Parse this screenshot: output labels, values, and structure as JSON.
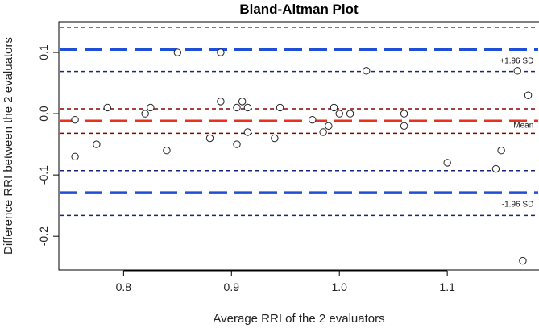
{
  "chart_data": {
    "type": "scatter",
    "title": "Bland-Altman Plot",
    "xlabel": "Average RRI of the 2 evaluators",
    "ylabel": "Difference RRI between the 2 evaluators",
    "xlim": [
      0.74,
      1.185
    ],
    "ylim": [
      -0.255,
      0.15
    ],
    "xticks": [
      0.8,
      0.9,
      1.0,
      1.1
    ],
    "xtick_labels": [
      "0.8",
      "0.9",
      "1.0",
      "1.1"
    ],
    "yticks": [
      -0.2,
      -0.1,
      0.0,
      0.1
    ],
    "ytick_labels": [
      "-0.2",
      "-0.1",
      "0.0",
      "0.1"
    ],
    "grid": false,
    "points": [
      {
        "x": 0.755,
        "y": -0.01
      },
      {
        "x": 0.755,
        "y": -0.07
      },
      {
        "x": 0.775,
        "y": -0.05
      },
      {
        "x": 0.785,
        "y": 0.01
      },
      {
        "x": 0.82,
        "y": 0.0
      },
      {
        "x": 0.825,
        "y": 0.01
      },
      {
        "x": 0.84,
        "y": -0.06
      },
      {
        "x": 0.85,
        "y": 0.1
      },
      {
        "x": 0.88,
        "y": -0.04
      },
      {
        "x": 0.89,
        "y": 0.1
      },
      {
        "x": 0.89,
        "y": 0.02
      },
      {
        "x": 0.905,
        "y": 0.01
      },
      {
        "x": 0.905,
        "y": -0.05
      },
      {
        "x": 0.91,
        "y": 0.02
      },
      {
        "x": 0.915,
        "y": 0.01
      },
      {
        "x": 0.915,
        "y": -0.03
      },
      {
        "x": 0.94,
        "y": -0.04
      },
      {
        "x": 0.945,
        "y": 0.01
      },
      {
        "x": 0.975,
        "y": -0.01
      },
      {
        "x": 0.985,
        "y": -0.03
      },
      {
        "x": 0.99,
        "y": -0.02
      },
      {
        "x": 0.995,
        "y": 0.01
      },
      {
        "x": 1.0,
        "y": 0.0
      },
      {
        "x": 1.01,
        "y": 0.0
      },
      {
        "x": 1.025,
        "y": 0.07
      },
      {
        "x": 1.06,
        "y": 0.0
      },
      {
        "x": 1.06,
        "y": -0.02
      },
      {
        "x": 1.1,
        "y": -0.08
      },
      {
        "x": 1.145,
        "y": -0.09
      },
      {
        "x": 1.15,
        "y": -0.06
      },
      {
        "x": 1.165,
        "y": 0.07
      },
      {
        "x": 1.17,
        "y": -0.24
      },
      {
        "x": 1.175,
        "y": 0.03
      }
    ],
    "reference_lines": [
      {
        "kind": "upper-loa-ci-upper",
        "y": 0.141,
        "color": "#1a237e",
        "width": 1.5,
        "dash": "5,4"
      },
      {
        "kind": "upper-loa",
        "y": 0.105,
        "color": "#1f4fd6",
        "width": 3.5,
        "dash": "22,9"
      },
      {
        "kind": "upper-loa-ci-lower",
        "y": 0.069,
        "color": "#1a237e",
        "width": 1.5,
        "dash": "5,4"
      },
      {
        "kind": "mean-ci-upper",
        "y": 0.008,
        "color": "#8b0000",
        "width": 1.5,
        "dash": "5,4"
      },
      {
        "kind": "mean",
        "y": -0.012,
        "color": "#e8311f",
        "width": 3.5,
        "dash": "22,9"
      },
      {
        "kind": "mean-ci-lower",
        "y": -0.032,
        "color": "#8b0000",
        "width": 1.5,
        "dash": "5,4"
      },
      {
        "kind": "lower-loa-ci-upper",
        "y": -0.093,
        "color": "#1a237e",
        "width": 1.5,
        "dash": "5,4"
      },
      {
        "kind": "lower-loa",
        "y": -0.129,
        "color": "#1f4fd6",
        "width": 3.5,
        "dash": "22,9"
      },
      {
        "kind": "lower-loa-ci-lower",
        "y": -0.166,
        "color": "#1a237e",
        "width": 1.5,
        "dash": "5,4"
      }
    ],
    "annotations": [
      {
        "text": "+1.96 SD",
        "x": 1.18,
        "y": 0.082
      },
      {
        "text": "Mean",
        "x": 1.18,
        "y": -0.023
      },
      {
        "text": "-1.96 SD",
        "x": 1.18,
        "y": -0.152
      }
    ]
  }
}
